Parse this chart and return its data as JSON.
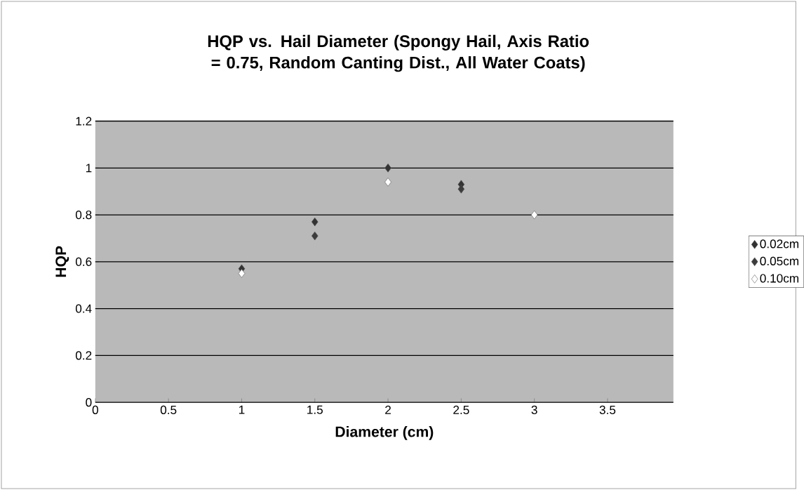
{
  "chart_data": {
    "type": "scatter",
    "title": "HQP vs. Hail Diameter (Spongy Hail, Axis Ratio = 0.75, Random Canting Dist., All Water Coats)",
    "xlabel": "Diameter (cm)",
    "ylabel": "HQP",
    "series": [
      {
        "name": "0.02cm",
        "color": "#333333",
        "x": [
          1,
          1.5,
          2,
          2.5
        ],
        "values": [
          0.57,
          0.77,
          1.0,
          0.93
        ]
      },
      {
        "name": "0.05cm",
        "color": "#3c3c3c",
        "x": [
          1.5,
          2.5
        ],
        "values": [
          0.71,
          0.91
        ]
      },
      {
        "name": "0.10cm",
        "color": "#ffffff",
        "x": [
          1,
          2,
          3
        ],
        "values": [
          0.55,
          0.94,
          0.8
        ]
      }
    ],
    "xlim": [
      0,
      3.95
    ],
    "ylim": [
      0,
      1.2
    ],
    "xticks": [
      0,
      0.5,
      1,
      1.5,
      2,
      2.5,
      3,
      3.5
    ],
    "yticks": [
      0,
      0.2,
      0.4,
      0.6,
      0.8,
      1,
      1.2
    ],
    "grid": "y",
    "legend": "right",
    "marker": "diamond"
  }
}
